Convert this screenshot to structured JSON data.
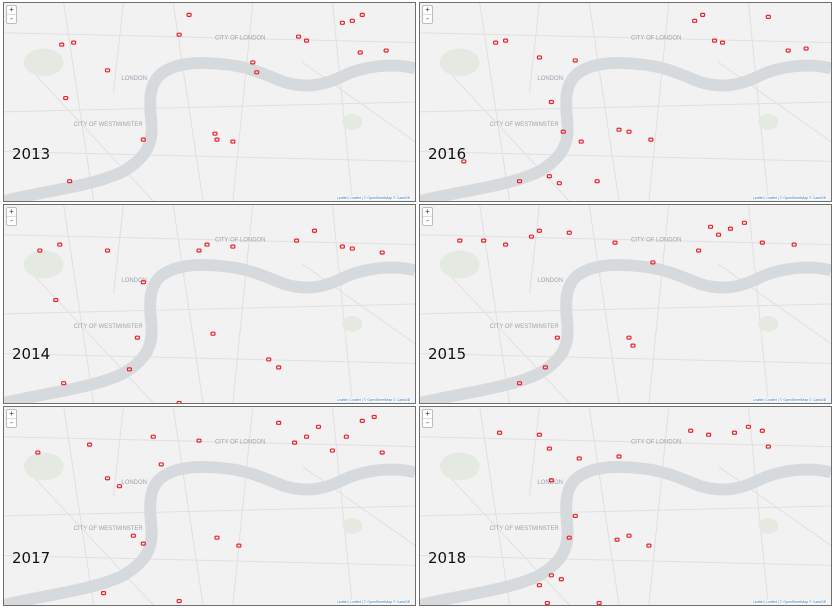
{
  "map": {
    "labels": {
      "city_of_london": "CITY OF LONDON",
      "london": "LONDON",
      "city_of_westminster": "CITY OF WESTMINSTER"
    },
    "attribution": "Leaflet | Leaflet | © OpenStreetMap © CartoDB",
    "zoom_in": "+",
    "zoom_out": "-",
    "marker_color": "#e8242a",
    "river_color": "#d6dadd",
    "land_color": "#f2f2f2"
  },
  "panels": [
    {
      "year": "2013",
      "markers": [
        [
          58,
          42
        ],
        [
          70,
          40
        ],
        [
          104,
          68
        ],
        [
          176,
          32
        ],
        [
          186,
          12
        ],
        [
          212,
          132
        ],
        [
          214,
          138
        ],
        [
          230,
          140
        ],
        [
          250,
          60
        ],
        [
          254,
          70
        ],
        [
          296,
          34
        ],
        [
          304,
          38
        ],
        [
          340,
          20
        ],
        [
          350,
          18
        ],
        [
          360,
          12
        ],
        [
          358,
          50
        ],
        [
          384,
          48
        ],
        [
          62,
          96
        ],
        [
          66,
          180
        ],
        [
          140,
          138
        ]
      ]
    },
    {
      "year": "2016",
      "markers": [
        [
          120,
          55
        ],
        [
          132,
          100
        ],
        [
          144,
          130
        ],
        [
          156,
          58
        ],
        [
          200,
          128
        ],
        [
          210,
          130
        ],
        [
          232,
          138
        ],
        [
          276,
          18
        ],
        [
          284,
          12
        ],
        [
          296,
          38
        ],
        [
          304,
          40
        ],
        [
          350,
          14
        ],
        [
          370,
          48
        ],
        [
          388,
          46
        ],
        [
          100,
          180
        ],
        [
          130,
          175
        ],
        [
          140,
          182
        ],
        [
          178,
          180
        ],
        [
          44,
          160
        ],
        [
          76,
          40
        ],
        [
          86,
          38
        ],
        [
          162,
          140
        ]
      ]
    },
    {
      "year": "2014",
      "markers": [
        [
          36,
          46
        ],
        [
          56,
          40
        ],
        [
          104,
          46
        ],
        [
          140,
          78
        ],
        [
          134,
          134
        ],
        [
          126,
          166
        ],
        [
          196,
          46
        ],
        [
          204,
          40
        ],
        [
          210,
          130
        ],
        [
          230,
          42
        ],
        [
          266,
          156
        ],
        [
          276,
          164
        ],
        [
          294,
          36
        ],
        [
          312,
          26
        ],
        [
          340,
          42
        ],
        [
          350,
          44
        ],
        [
          380,
          48
        ],
        [
          52,
          96
        ],
        [
          60,
          180
        ],
        [
          176,
          200
        ]
      ]
    },
    {
      "year": "2015",
      "markers": [
        [
          40,
          36
        ],
        [
          64,
          36
        ],
        [
          86,
          40
        ],
        [
          112,
          32
        ],
        [
          120,
          26
        ],
        [
          150,
          28
        ],
        [
          196,
          38
        ],
        [
          210,
          134
        ],
        [
          214,
          142
        ],
        [
          234,
          58
        ],
        [
          280,
          46
        ],
        [
          292,
          22
        ],
        [
          300,
          30
        ],
        [
          312,
          24
        ],
        [
          326,
          18
        ],
        [
          344,
          38
        ],
        [
          376,
          40
        ],
        [
          126,
          164
        ],
        [
          100,
          180
        ],
        [
          138,
          134
        ]
      ]
    },
    {
      "year": "2017",
      "markers": [
        [
          34,
          46
        ],
        [
          86,
          38
        ],
        [
          104,
          72
        ],
        [
          116,
          80
        ],
        [
          150,
          30
        ],
        [
          158,
          58
        ],
        [
          196,
          34
        ],
        [
          214,
          132
        ],
        [
          236,
          140
        ],
        [
          276,
          16
        ],
        [
          292,
          36
        ],
        [
          304,
          30
        ],
        [
          316,
          20
        ],
        [
          330,
          44
        ],
        [
          344,
          30
        ],
        [
          360,
          14
        ],
        [
          372,
          10
        ],
        [
          380,
          46
        ],
        [
          130,
          130
        ],
        [
          140,
          138
        ],
        [
          176,
          196
        ],
        [
          100,
          188
        ]
      ]
    },
    {
      "year": "2018",
      "markers": [
        [
          80,
          26
        ],
        [
          120,
          28
        ],
        [
          130,
          42
        ],
        [
          132,
          74
        ],
        [
          156,
          110
        ],
        [
          198,
          134
        ],
        [
          210,
          130
        ],
        [
          230,
          140
        ],
        [
          272,
          24
        ],
        [
          290,
          28
        ],
        [
          316,
          26
        ],
        [
          330,
          20
        ],
        [
          344,
          24
        ],
        [
          350,
          40
        ],
        [
          120,
          180
        ],
        [
          132,
          170
        ],
        [
          142,
          174
        ],
        [
          150,
          132
        ],
        [
          200,
          50
        ],
        [
          160,
          52
        ],
        [
          128,
          198
        ],
        [
          180,
          198
        ]
      ]
    }
  ]
}
